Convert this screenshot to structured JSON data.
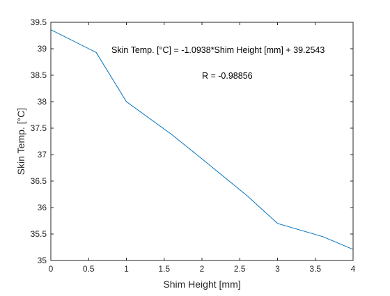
{
  "chart_data": {
    "type": "line",
    "xlabel": "Shim Height [mm]",
    "ylabel": "Skin Temp. [°C]",
    "xlim": [
      0,
      4
    ],
    "ylim": [
      35,
      39.5
    ],
    "x_ticks": [
      "0",
      "0.5",
      "1",
      "1.5",
      "2",
      "2.5",
      "3",
      "3.5",
      "4"
    ],
    "y_ticks": [
      "35",
      "35.5",
      "36",
      "36.5",
      "37",
      "37.5",
      "38",
      "38.5",
      "39",
      "39.5"
    ],
    "grid": false,
    "series": [
      {
        "color": "#0072bd",
        "x": [
          0,
          0.6,
          1.0,
          1.6,
          2.0,
          2.6,
          3.0,
          3.6,
          4.0
        ],
        "y": [
          39.36,
          38.93,
          38.0,
          37.38,
          36.92,
          36.22,
          35.7,
          35.45,
          35.21
        ]
      }
    ],
    "annotations": [
      "Skin Temp. [°C] = -1.0938*Shim Height [mm] + 39.2543",
      "R = -0.98856"
    ]
  },
  "colors": {
    "axis": "#262626",
    "line": "#0072bd",
    "background": "#ffffff"
  }
}
